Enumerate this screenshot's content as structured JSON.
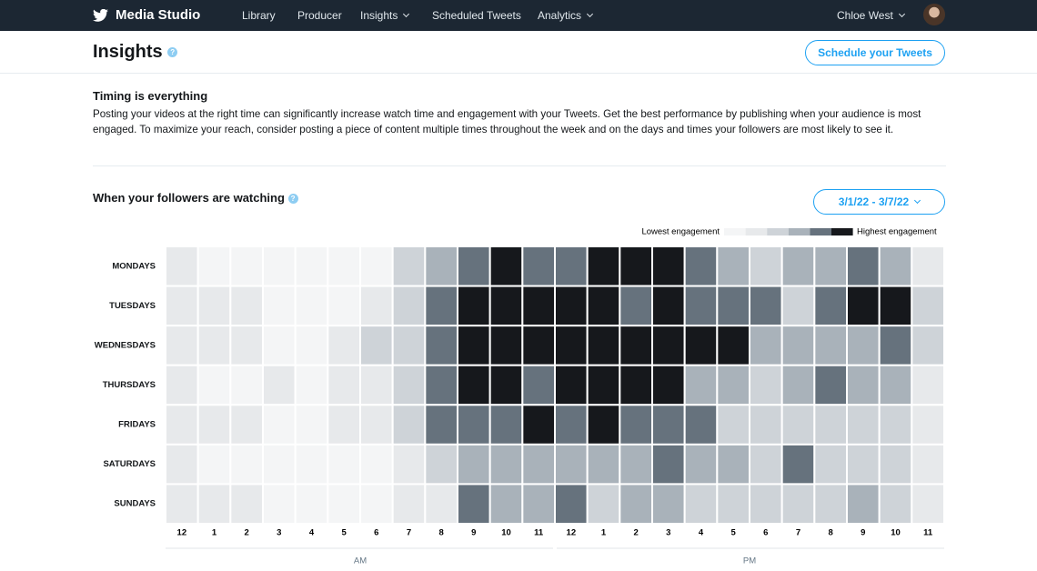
{
  "nav": {
    "brand": "Media Studio",
    "items": [
      "Library",
      "Producer",
      "Insights",
      "Scheduled Tweets",
      "Analytics"
    ],
    "user": "Chloe West"
  },
  "header": {
    "title": "Insights",
    "button": "Schedule your Tweets"
  },
  "intro": {
    "heading": "Timing is everything",
    "body": "Posting your videos at the right time can significantly increase watch time and engagement with your Tweets. Get the best performance by publishing when your audience is most engaged. To maximize your reach, consider posting a piece of content multiple times throughout the week and on the days and times your followers are most likely to see it."
  },
  "heatmap": {
    "title": "When your followers are watching",
    "date_range": "3/1/22 - 3/7/22",
    "legend_low": "Lowest engagement",
    "legend_high": "Highest engagement",
    "colors": [
      "#f4f5f6",
      "#e7e9eb",
      "#ced3d8",
      "#a9b2ba",
      "#66727d",
      "#16181c"
    ],
    "hours": [
      "12",
      "1",
      "2",
      "3",
      "4",
      "5",
      "6",
      "7",
      "8",
      "9",
      "10",
      "11",
      "12",
      "1",
      "2",
      "3",
      "4",
      "5",
      "6",
      "7",
      "8",
      "9",
      "10",
      "11"
    ],
    "periods": [
      "AM",
      "PM"
    ],
    "rows": [
      {
        "day": "MONDAYS",
        "levels": [
          1,
          0,
          0,
          0,
          0,
          0,
          0,
          2,
          3,
          4,
          5,
          4,
          4,
          5,
          5,
          5,
          4,
          3,
          2,
          3,
          3,
          4,
          3,
          1
        ]
      },
      {
        "day": "TUESDAYS",
        "levels": [
          1,
          1,
          1,
          0,
          0,
          0,
          1,
          2,
          4,
          5,
          5,
          5,
          5,
          5,
          4,
          5,
          4,
          4,
          4,
          2,
          4,
          5,
          5,
          2
        ]
      },
      {
        "day": "WEDNESDAYS",
        "levels": [
          1,
          1,
          1,
          0,
          0,
          1,
          2,
          2,
          4,
          5,
          5,
          5,
          5,
          5,
          5,
          5,
          5,
          5,
          3,
          3,
          3,
          3,
          4,
          2
        ]
      },
      {
        "day": "THURSDAYS",
        "levels": [
          1,
          0,
          0,
          1,
          0,
          1,
          1,
          2,
          4,
          5,
          5,
          4,
          5,
          5,
          5,
          5,
          3,
          3,
          2,
          3,
          4,
          3,
          3,
          1
        ]
      },
      {
        "day": "FRIDAYS",
        "levels": [
          1,
          1,
          1,
          0,
          0,
          1,
          1,
          2,
          4,
          4,
          4,
          5,
          4,
          5,
          4,
          4,
          4,
          2,
          2,
          2,
          2,
          2,
          2,
          1
        ]
      },
      {
        "day": "SATURDAYS",
        "levels": [
          1,
          0,
          0,
          0,
          0,
          0,
          0,
          1,
          2,
          3,
          3,
          3,
          3,
          3,
          3,
          4,
          3,
          3,
          2,
          4,
          2,
          2,
          2,
          1
        ]
      },
      {
        "day": "SUNDAYS",
        "levels": [
          1,
          1,
          1,
          0,
          0,
          0,
          0,
          1,
          1,
          4,
          3,
          3,
          4,
          2,
          3,
          3,
          2,
          2,
          2,
          2,
          2,
          3,
          2,
          1
        ]
      }
    ]
  }
}
